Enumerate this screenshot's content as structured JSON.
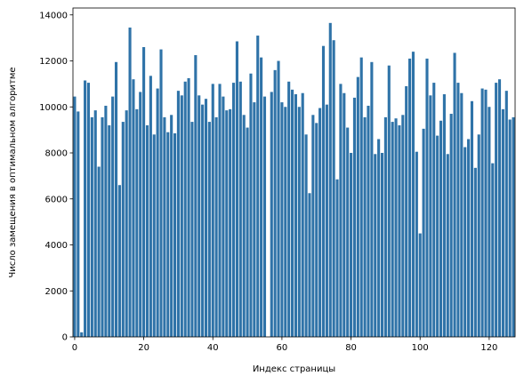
{
  "chart_data": {
    "type": "bar",
    "xlabel": "Индекс страницы",
    "ylabel": "Число замещения в оптимальном алгоритме",
    "xlim": [
      -0.5,
      127.5
    ],
    "ylim": [
      0,
      14300
    ],
    "xticks": [
      0,
      20,
      40,
      60,
      80,
      100,
      120
    ],
    "yticks": [
      0,
      2000,
      4000,
      6000,
      8000,
      10000,
      12000,
      14000
    ],
    "grid": false,
    "legend": "none",
    "bar_color": "#2f73a8",
    "x": [
      0,
      1,
      2,
      3,
      4,
      5,
      6,
      7,
      8,
      9,
      10,
      11,
      12,
      13,
      14,
      15,
      16,
      17,
      18,
      19,
      20,
      21,
      22,
      23,
      24,
      25,
      26,
      27,
      28,
      29,
      30,
      31,
      32,
      33,
      34,
      35,
      36,
      37,
      38,
      39,
      40,
      41,
      42,
      43,
      44,
      45,
      46,
      47,
      48,
      49,
      50,
      51,
      52,
      53,
      54,
      55,
      56,
      57,
      58,
      59,
      60,
      61,
      62,
      63,
      64,
      65,
      66,
      67,
      68,
      69,
      70,
      71,
      72,
      73,
      74,
      75,
      76,
      77,
      78,
      79,
      80,
      81,
      82,
      83,
      84,
      85,
      86,
      87,
      88,
      89,
      90,
      91,
      92,
      93,
      94,
      95,
      96,
      97,
      98,
      99,
      100,
      101,
      102,
      103,
      104,
      105,
      106,
      107,
      108,
      109,
      110,
      111,
      112,
      113,
      114,
      115,
      116,
      117,
      118,
      119,
      120,
      121,
      122,
      123,
      124,
      125,
      126,
      127
    ],
    "values": [
      10450,
      9800,
      200,
      11150,
      11050,
      9550,
      9850,
      7400,
      9550,
      10050,
      9200,
      10450,
      11950,
      6600,
      9350,
      9850,
      13450,
      11200,
      9900,
      10650,
      12600,
      9200,
      11350,
      8800,
      10800,
      12500,
      9550,
      8900,
      9650,
      8850,
      10700,
      10500,
      11100,
      11250,
      9350,
      12250,
      10500,
      10100,
      10350,
      9350,
      11000,
      9550,
      11000,
      10450,
      9850,
      9900,
      11050,
      12850,
      11100,
      9650,
      9100,
      11450,
      10200,
      13100,
      12150,
      10450,
      0,
      10650,
      11600,
      12000,
      10200,
      10000,
      11100,
      10750,
      10550,
      10000,
      10600,
      8800,
      6250,
      9650,
      9300,
      9950,
      12650,
      10100,
      13650,
      12900,
      6850,
      11000,
      10600,
      9100,
      8000,
      10400,
      11300,
      12150,
      9550,
      10050,
      11950,
      7950,
      8600,
      8000,
      9550,
      11800,
      9350,
      9500,
      9200,
      9650,
      10900,
      12100,
      12400,
      8050,
      4500,
      9050,
      12100,
      10500,
      11050,
      8750,
      9400,
      10550,
      7950,
      9700,
      12350,
      11050,
      10600,
      8250,
      8600,
      10250,
      7350,
      8800,
      10800,
      10750,
      10000,
      7550,
      11050,
      11200,
      9900,
      10700,
      9450,
      9550
    ]
  }
}
